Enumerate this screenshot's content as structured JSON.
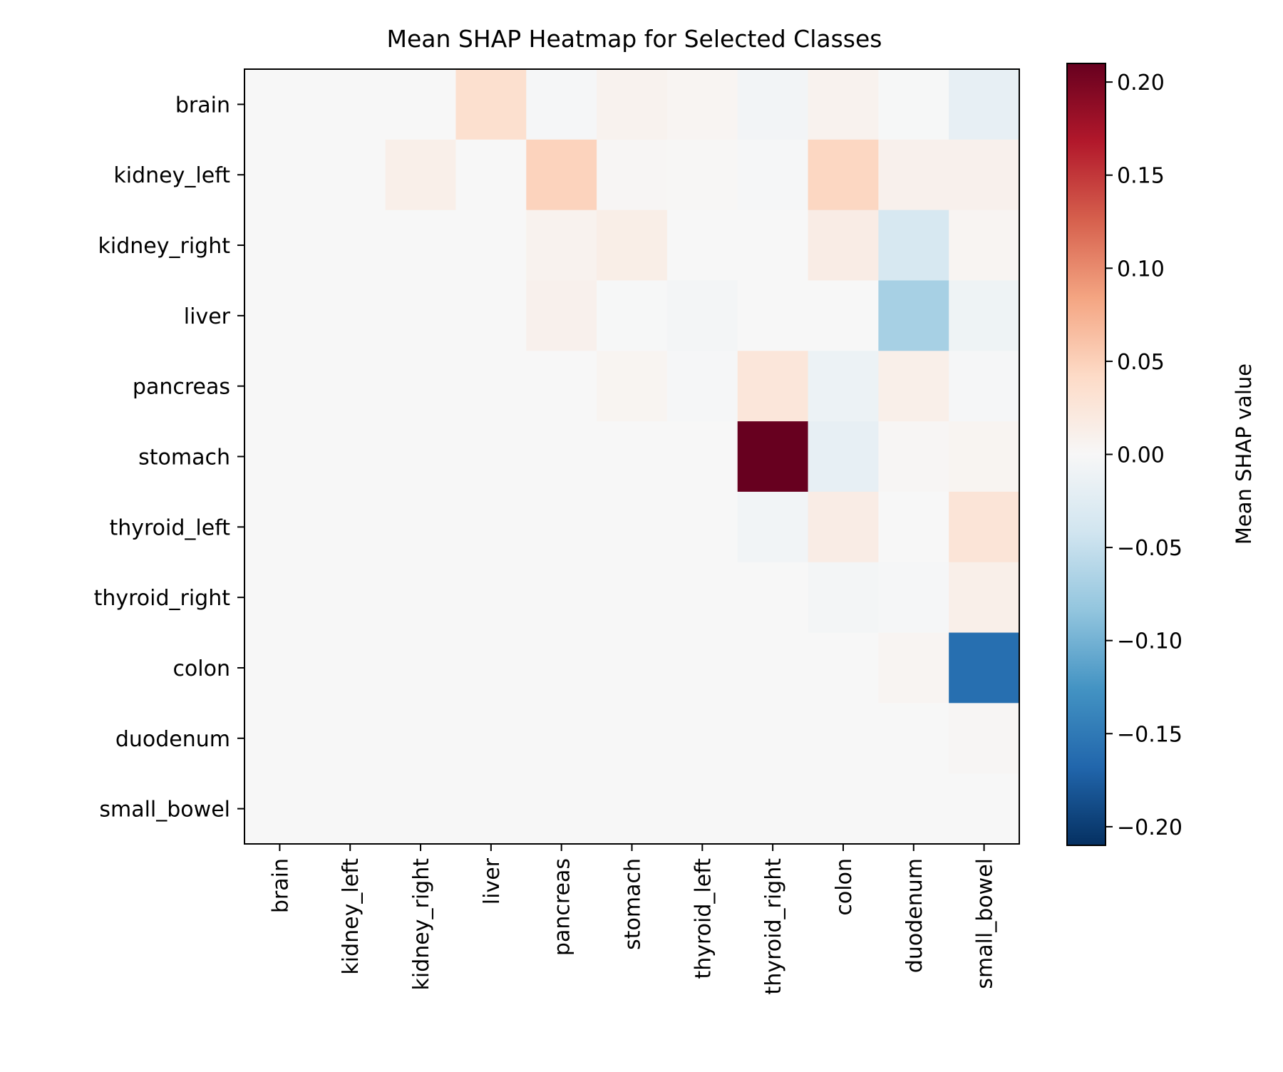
{
  "chart_data": {
    "type": "heatmap",
    "title": "Mean SHAP Heatmap for Selected Classes",
    "rows": [
      "brain",
      "kidney_left",
      "kidney_right",
      "liver",
      "pancreas",
      "stomach",
      "thyroid_left",
      "thyroid_right",
      "colon",
      "duodenum",
      "small_bowel"
    ],
    "columns": [
      "brain",
      "kidney_left",
      "kidney_right",
      "liver",
      "pancreas",
      "stomach",
      "thyroid_left",
      "thyroid_right",
      "colon",
      "duodenum",
      "small_bowel"
    ],
    "values": [
      [
        0,
        0,
        0,
        0.035,
        -0.002,
        0.008,
        0.004,
        -0.006,
        0.008,
        -0.001,
        -0.018
      ],
      [
        0,
        0,
        0.012,
        0,
        0.048,
        0.003,
        0.002,
        -0.002,
        0.045,
        0.01,
        0.01
      ],
      [
        0,
        0,
        0,
        0,
        0.008,
        0.014,
        0,
        0,
        0.016,
        -0.035,
        0.004
      ],
      [
        0,
        0,
        0,
        0,
        0.01,
        -0.001,
        -0.004,
        0,
        0,
        -0.07,
        -0.01
      ],
      [
        0,
        0,
        0,
        0,
        0,
        0.005,
        -0.002,
        0.025,
        -0.012,
        0.012,
        -0.002
      ],
      [
        0,
        0,
        0,
        0,
        0,
        0,
        0,
        0.21,
        -0.018,
        0.003,
        0.005
      ],
      [
        0,
        0,
        0,
        0,
        0,
        0,
        0,
        -0.007,
        0.016,
        0,
        0.028
      ],
      [
        0,
        0,
        0,
        0,
        0,
        0,
        0,
        0,
        -0.004,
        -0.002,
        0.012
      ],
      [
        0,
        0,
        0,
        0,
        0,
        0,
        0,
        0,
        0,
        0.004,
        -0.16
      ],
      [
        0,
        0,
        0,
        0,
        0,
        0,
        0,
        0,
        0,
        0,
        0.003
      ],
      [
        0,
        0,
        0,
        0,
        0,
        0,
        0,
        0,
        0,
        0,
        0
      ]
    ],
    "colormap": "RdBu_r",
    "vmin": -0.21,
    "vmax": 0.21,
    "colorbar": {
      "label": "Mean SHAP value",
      "ticks": [
        0.2,
        0.15,
        0.1,
        0.05,
        0.0,
        -0.05,
        -0.1,
        -0.15,
        -0.2
      ],
      "tick_labels": [
        "0.20",
        "0.15",
        "0.10",
        "0.05",
        "0.00",
        "−0.05",
        "−0.10",
        "−0.15",
        "−0.20"
      ]
    },
    "grid": false
  }
}
